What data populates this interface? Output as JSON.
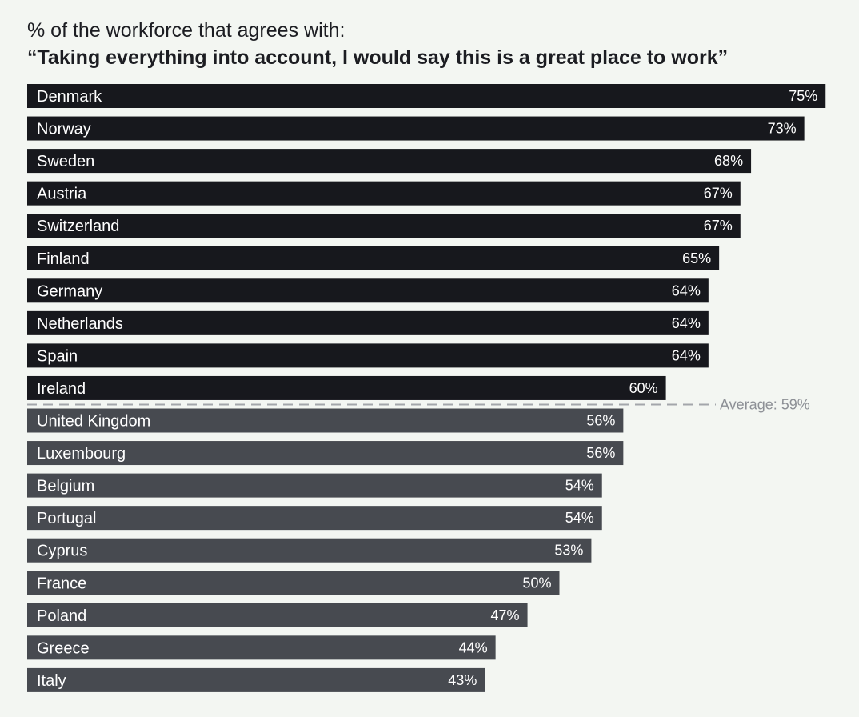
{
  "chart_data": {
    "type": "bar",
    "orientation": "horizontal",
    "subtitle": "% of the workforce that agrees with:",
    "title": "“Taking everything into account, I would say this is a great place to work”",
    "categories": [
      "Denmark",
      "Norway",
      "Sweden",
      "Austria",
      "Switzerland",
      "Finland",
      "Germany",
      "Netherlands",
      "Spain",
      "Ireland",
      "United Kingdom",
      "Luxembourg",
      "Belgium",
      "Portugal",
      "Cyprus",
      "France",
      "Poland",
      "Greece",
      "Italy"
    ],
    "values": [
      75,
      73,
      68,
      67,
      67,
      65,
      64,
      64,
      64,
      60,
      56,
      56,
      54,
      54,
      53,
      50,
      47,
      44,
      43
    ],
    "value_labels": [
      "75%",
      "73%",
      "68%",
      "67%",
      "67%",
      "65%",
      "64%",
      "64%",
      "64%",
      "60%",
      "56%",
      "56%",
      "54%",
      "54%",
      "53%",
      "50%",
      "47%",
      "44%",
      "43%"
    ],
    "average": {
      "value": 59,
      "label": "Average: 59%"
    },
    "colors": {
      "above_average": "#17181d",
      "below_average": "#474a50",
      "average_line": "#a3a6ab",
      "bar_text": "#ffffff",
      "background": "#f3f6f2"
    },
    "grid": false,
    "legend": "none"
  }
}
